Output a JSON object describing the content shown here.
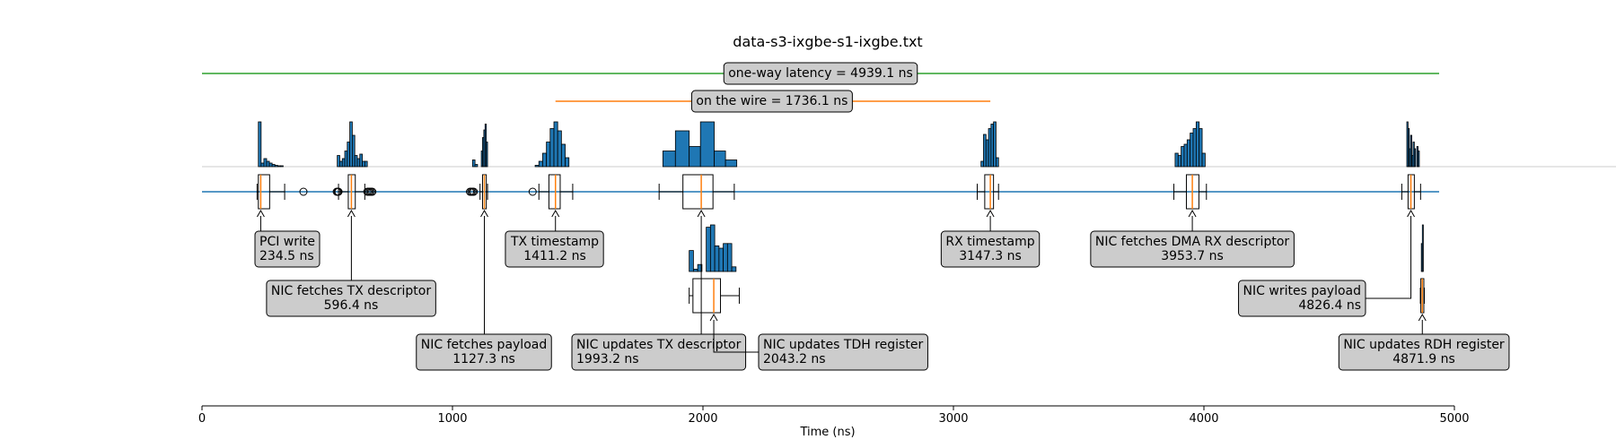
{
  "chart_data": {
    "type": "timeline",
    "title": "data-s3-ixgbe-s1-ixgbe.txt",
    "xlabel": "Time (ns)",
    "xlim": [
      0,
      5000
    ],
    "xticks": [
      0,
      1000,
      2000,
      3000,
      4000,
      5000
    ],
    "spans": [
      {
        "label": "one-way latency = 4939.1 ns",
        "start": 0,
        "end": 4939.1,
        "color": "#2ca02c"
      },
      {
        "label": "on the wire = 1736.1 ns",
        "start": 1411.2,
        "end": 3147.3,
        "color": "#ff7f0e"
      }
    ],
    "events": [
      {
        "name": "PCI write",
        "value_label": "234.5 ns",
        "median": 234.5,
        "q1": 225,
        "q3": 270,
        "wlo": 220,
        "whi": 330,
        "outliers": [
          405
        ],
        "row": 1,
        "hist": [
          [
            225,
            236,
            1.0
          ],
          [
            236,
            247,
            0.08
          ],
          [
            247,
            258,
            0.18
          ],
          [
            258,
            269,
            0.12
          ],
          [
            269,
            280,
            0.08
          ],
          [
            280,
            291,
            0.05
          ],
          [
            291,
            302,
            0.03
          ],
          [
            302,
            313,
            0.02
          ],
          [
            313,
            324,
            0.02
          ]
        ]
      },
      {
        "name": "NIC fetches TX descriptor",
        "value_label": "596.4 ns",
        "median": 596.4,
        "q1": 584,
        "q3": 612,
        "wlo": 545,
        "whi": 650,
        "outliers": [
          538,
          542,
          545,
          660,
          665,
          670,
          675,
          680
        ],
        "row": 1,
        "hist": [
          [
            540,
            550,
            0.25
          ],
          [
            550,
            560,
            0.12
          ],
          [
            560,
            570,
            0.18
          ],
          [
            570,
            580,
            0.35
          ],
          [
            580,
            590,
            0.55
          ],
          [
            590,
            600,
            1.0
          ],
          [
            600,
            610,
            0.7
          ],
          [
            610,
            620,
            0.25
          ],
          [
            620,
            630,
            0.18
          ],
          [
            630,
            640,
            0.28
          ],
          [
            640,
            650,
            0.12
          ],
          [
            650,
            660,
            0.12
          ]
        ]
      },
      {
        "name": "NIC fetches payload",
        "value_label": "1127.3 ns",
        "median": 1127.3,
        "q1": 1120,
        "q3": 1135,
        "wlo": 1110,
        "whi": 1140,
        "outliers": [
          1070,
          1075,
          1080,
          1085
        ],
        "row": 1,
        "hist": [
          [
            1080,
            1090,
            0.15
          ],
          [
            1090,
            1100,
            0.05
          ],
          [
            1115,
            1120,
            0.35
          ],
          [
            1120,
            1125,
            0.65
          ],
          [
            1125,
            1130,
            0.82
          ],
          [
            1130,
            1135,
            0.95
          ],
          [
            1135,
            1140,
            0.55
          ]
        ]
      },
      {
        "name": "TX timestamp",
        "value_label": "1411.2 ns",
        "median": 1411.2,
        "q1": 1385,
        "q3": 1430,
        "wlo": 1345,
        "whi": 1480,
        "outliers": [
          1320
        ],
        "row": 1,
        "hist": [
          [
            1330,
            1345,
            0.03
          ],
          [
            1345,
            1360,
            0.12
          ],
          [
            1360,
            1375,
            0.3
          ],
          [
            1375,
            1390,
            0.55
          ],
          [
            1390,
            1405,
            0.85
          ],
          [
            1405,
            1420,
            1.0
          ],
          [
            1420,
            1435,
            0.8
          ],
          [
            1435,
            1450,
            0.5
          ],
          [
            1450,
            1465,
            0.2
          ]
        ]
      },
      {
        "name": "NIC updates TX descriptor",
        "value_label": "1993.2 ns",
        "median": 1993.2,
        "q1": 1920,
        "q3": 2040,
        "wlo": 1825,
        "whi": 2125,
        "outliers": [],
        "row": 1,
        "hist": [
          [
            1840,
            1890,
            0.35
          ],
          [
            1890,
            1945,
            0.8
          ],
          [
            1945,
            1990,
            0.45
          ],
          [
            1990,
            2045,
            1.0
          ],
          [
            2045,
            2090,
            0.35
          ],
          [
            2090,
            2135,
            0.15
          ]
        ]
      },
      {
        "name": "RX timestamp",
        "value_label": "3147.3 ns",
        "median": 3147.3,
        "q1": 3125,
        "q3": 3160,
        "wlo": 3095,
        "whi": 3180,
        "outliers": [],
        "row": 1,
        "hist": [
          [
            3110,
            3120,
            0.12
          ],
          [
            3120,
            3130,
            0.72
          ],
          [
            3130,
            3140,
            0.6
          ],
          [
            3140,
            3150,
            0.85
          ],
          [
            3150,
            3160,
            0.95
          ],
          [
            3160,
            3170,
            1.0
          ],
          [
            3170,
            3180,
            0.2
          ]
        ]
      },
      {
        "name": "NIC fetches DMA RX descriptor",
        "value_label": "3953.7 ns",
        "median": 3953.7,
        "q1": 3930,
        "q3": 3980,
        "wlo": 3880,
        "whi": 4010,
        "outliers": [],
        "row": 1,
        "hist": [
          [
            3885,
            3897,
            0.3
          ],
          [
            3897,
            3909,
            0.25
          ],
          [
            3909,
            3921,
            0.45
          ],
          [
            3921,
            3933,
            0.5
          ],
          [
            3933,
            3945,
            0.6
          ],
          [
            3945,
            3957,
            0.75
          ],
          [
            3957,
            3969,
            0.85
          ],
          [
            3969,
            3981,
            1.0
          ],
          [
            3981,
            3993,
            0.85
          ],
          [
            3993,
            4005,
            0.3
          ]
        ]
      },
      {
        "name": "NIC writes payload",
        "value_label": "4826.4 ns",
        "median": 4826.4,
        "q1": 4815,
        "q3": 4840,
        "wlo": 4790,
        "whi": 4865,
        "outliers": [],
        "row": 1,
        "hist": [
          [
            4810,
            4815,
            1.0
          ],
          [
            4815,
            4820,
            0.85
          ],
          [
            4820,
            4825,
            0.4
          ],
          [
            4825,
            4830,
            0.7
          ],
          [
            4830,
            4835,
            0.25
          ],
          [
            4835,
            4840,
            0.55
          ],
          [
            4840,
            4845,
            0.4
          ],
          [
            4850,
            4855,
            0.45
          ],
          [
            4855,
            4860,
            0.35
          ]
        ]
      },
      {
        "name": "NIC updates TDH register",
        "value_label": "2043.2 ns",
        "median": 2043.2,
        "q1": 1960,
        "q3": 2070,
        "wlo": 1945,
        "whi": 2145,
        "outliers": [],
        "row": 2,
        "hist": [
          [
            1945,
            1962,
            0.45
          ],
          [
            1962,
            1979,
            0.05
          ],
          [
            1979,
            1996,
            0.15
          ],
          [
            1996,
            2013,
            0.0
          ],
          [
            2013,
            2030,
            0.95
          ],
          [
            2030,
            2047,
            1.0
          ],
          [
            2047,
            2064,
            0.55
          ],
          [
            2064,
            2081,
            0.5
          ],
          [
            2081,
            2098,
            0.6
          ],
          [
            2098,
            2115,
            0.6
          ],
          [
            2115,
            2132,
            0.1
          ]
        ]
      },
      {
        "name": "NIC updates RDH register",
        "value_label": "4871.9 ns",
        "median": 4871.9,
        "q1": 4866,
        "q3": 4878,
        "wlo": 4864,
        "whi": 4880,
        "outliers": [],
        "row": 2,
        "hist": [
          [
            4868,
            4872,
            0.6
          ],
          [
            4872,
            4876,
            1.0
          ]
        ]
      }
    ],
    "grid": false,
    "legend": "none"
  }
}
